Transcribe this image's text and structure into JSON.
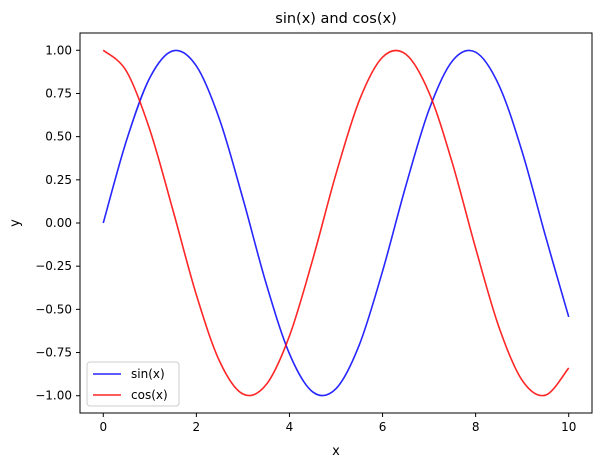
{
  "chart_data": {
    "type": "line",
    "title": "sin(x) and cos(x)",
    "xlabel": "x",
    "ylabel": "y",
    "xlim": [
      -0.5,
      10.5
    ],
    "ylim": [
      -1.1,
      1.1
    ],
    "xticks": [
      0,
      2,
      4,
      6,
      8,
      10
    ],
    "xtick_labels": [
      "0",
      "2",
      "4",
      "6",
      "8",
      "10"
    ],
    "yticks": [
      -1.0,
      -0.75,
      -0.5,
      -0.25,
      0.0,
      0.25,
      0.5,
      0.75,
      1.0
    ],
    "ytick_labels": [
      "−1.00",
      "−0.75",
      "−0.50",
      "−0.25",
      "0.00",
      "0.25",
      "0.50",
      "0.75",
      "1.00"
    ],
    "grid": false,
    "legend_position": "lower-left",
    "x": [
      0,
      0.5,
      1,
      1.5,
      2,
      2.5,
      3,
      3.5,
      4,
      4.5,
      5,
      5.5,
      6,
      6.5,
      7,
      7.5,
      8,
      8.5,
      9,
      9.5,
      10
    ],
    "series": [
      {
        "name": "sin(x)",
        "color": "#0000ff",
        "values": [
          0.0,
          0.479,
          0.841,
          0.997,
          0.909,
          0.598,
          0.141,
          -0.351,
          -0.757,
          -0.978,
          -0.959,
          -0.706,
          -0.279,
          0.215,
          0.657,
          0.938,
          0.989,
          0.798,
          0.412,
          -0.075,
          -0.544
        ]
      },
      {
        "name": "cos(x)",
        "color": "#ff0000",
        "values": [
          1.0,
          0.878,
          0.54,
          0.071,
          -0.416,
          -0.801,
          -0.99,
          -0.936,
          -0.654,
          -0.211,
          0.284,
          0.709,
          0.96,
          0.977,
          0.754,
          0.347,
          -0.146,
          -0.602,
          -0.911,
          -0.997,
          -0.839
        ]
      }
    ]
  }
}
